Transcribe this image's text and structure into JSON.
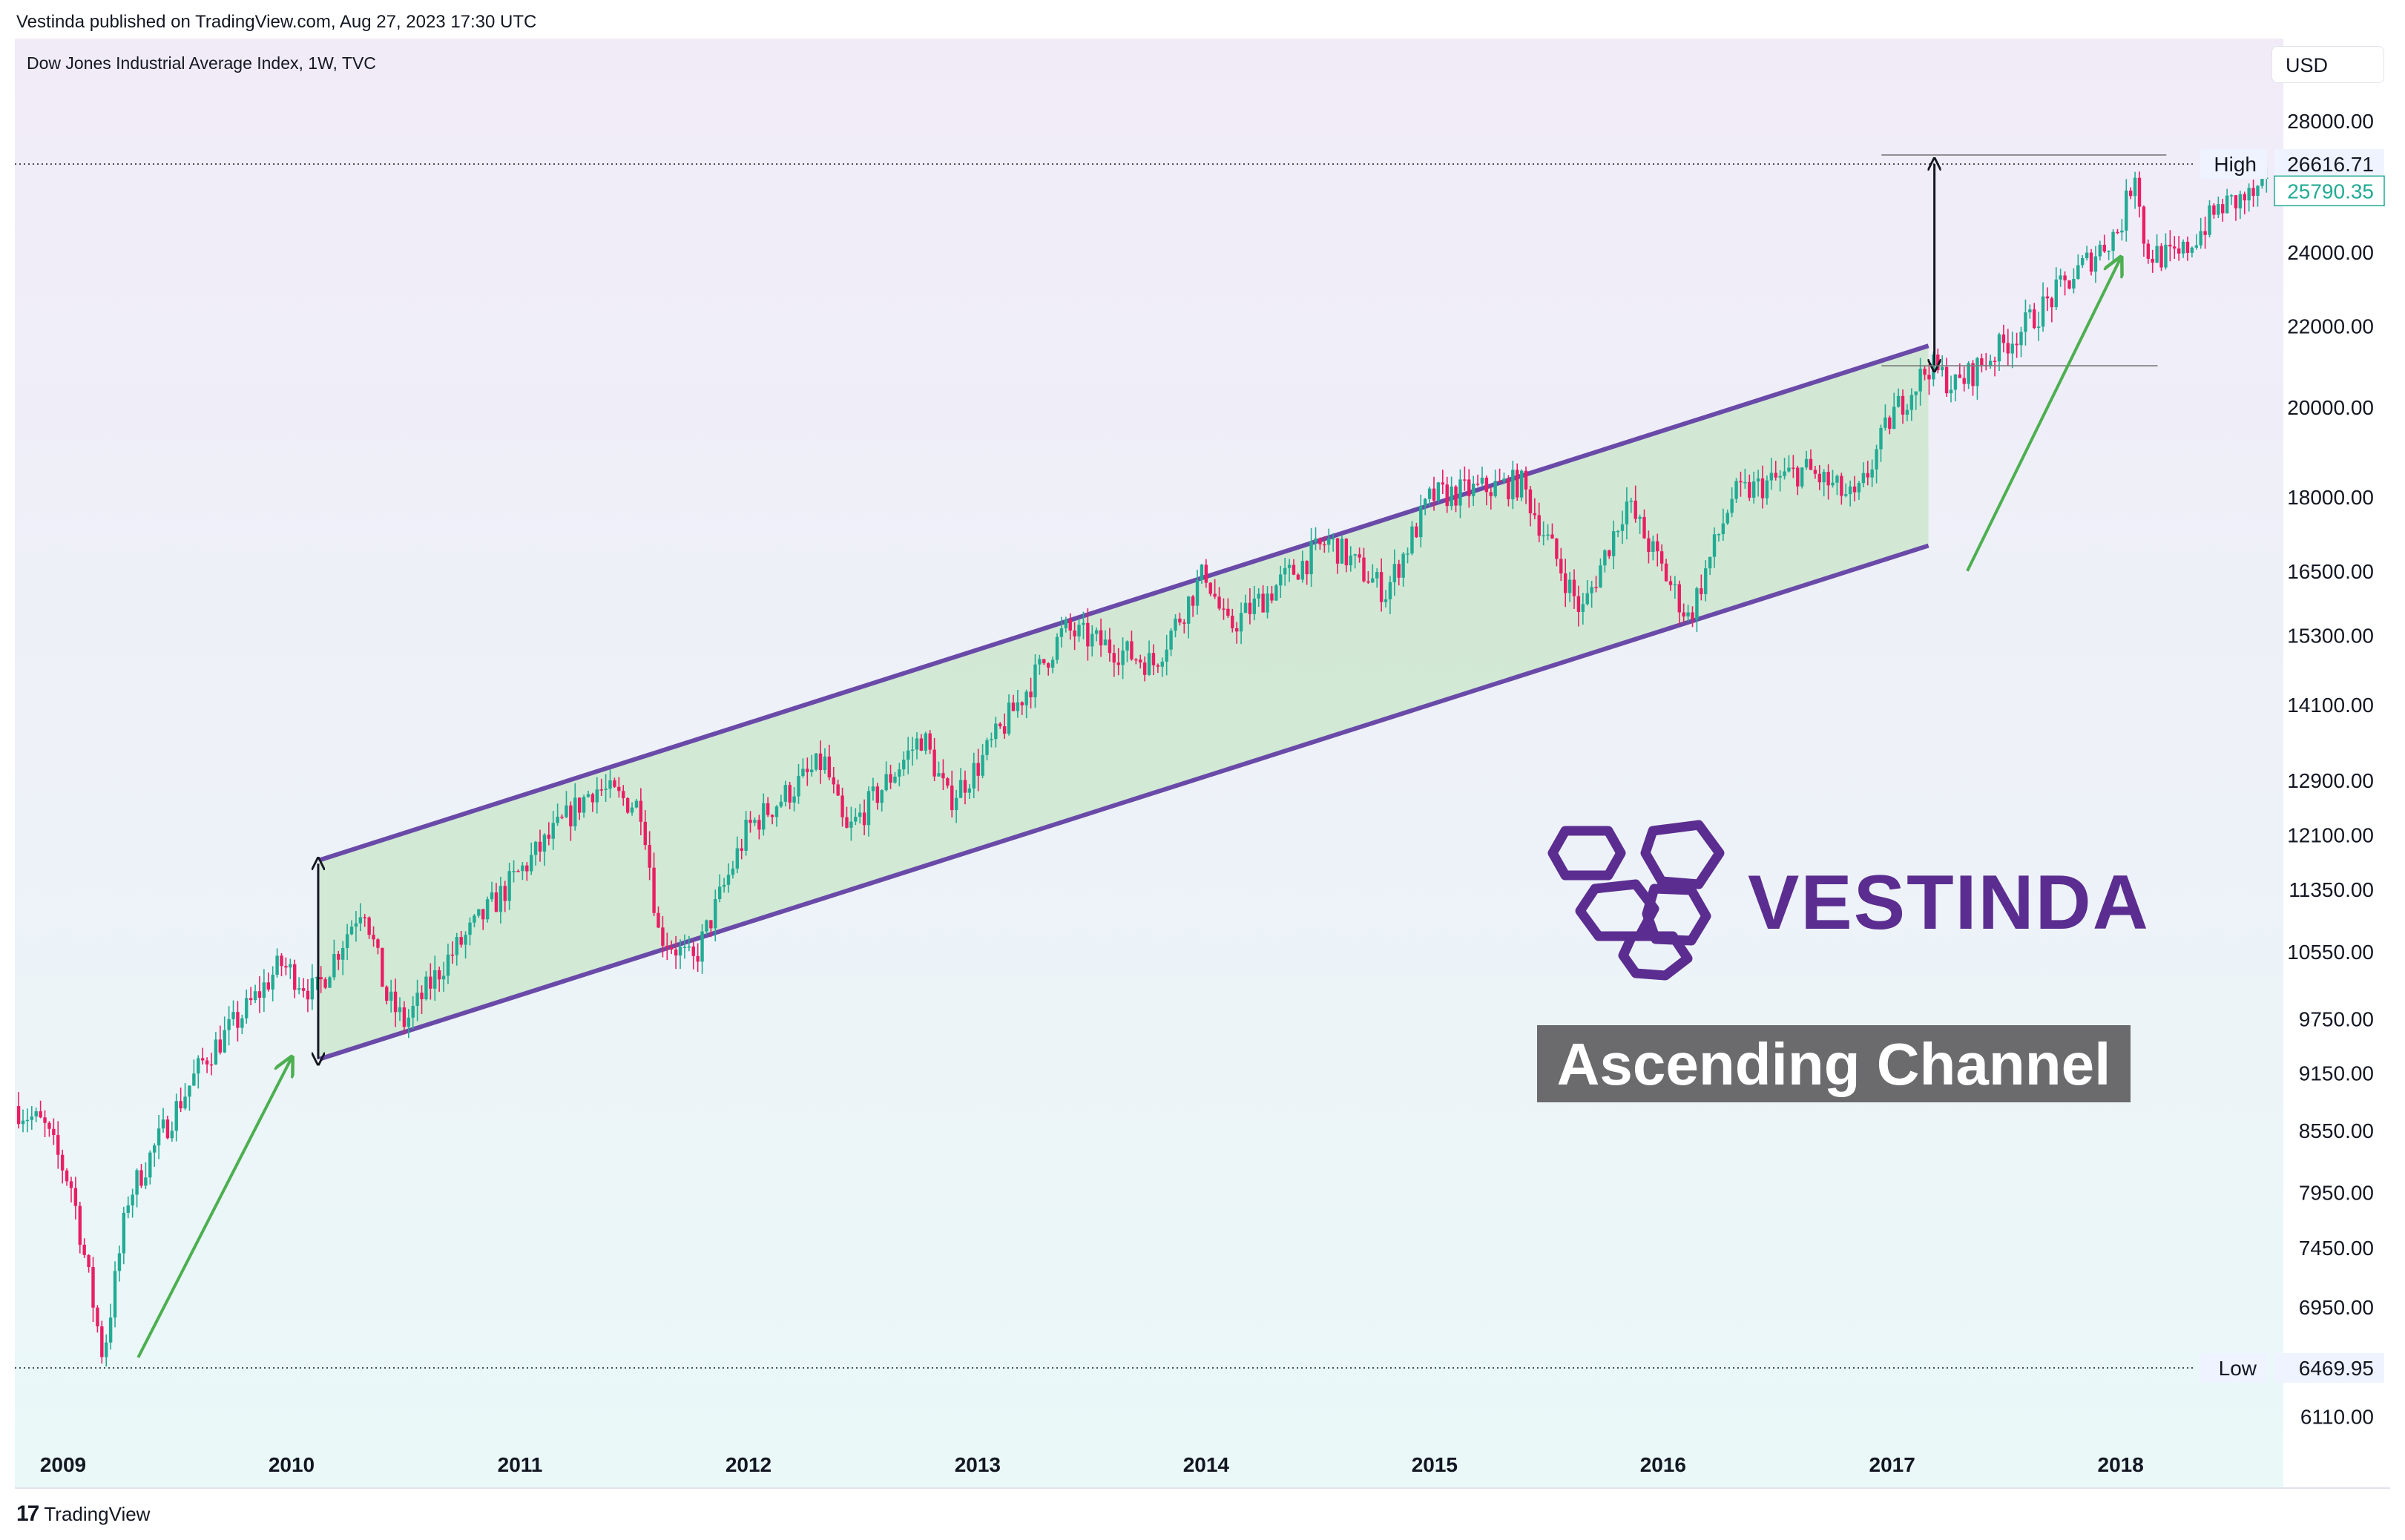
{
  "header": {
    "published": "Vestinda published on TradingView.com, Aug 27, 2023 17:30 UTC",
    "symbol": "Dow Jones Industrial Average Index, 1W, TVC",
    "currency": "USD"
  },
  "footer": {
    "logo_mark": "17",
    "logo_text": "TradingView"
  },
  "branding": {
    "name": "VESTINDA",
    "caption": "Ascending Channel"
  },
  "colors": {
    "up": "#26a69a",
    "up_bright": "#22ab94",
    "down": "#e91e63",
    "channel_line": "#6a4aa8",
    "channel_fill": "#c8e6c9",
    "arrow_green": "#4caf50",
    "brand": "#5b2d90",
    "caption_bg": "#6b6b6e",
    "last_price": "#22ab94"
  },
  "chart_data": {
    "type": "candlestick",
    "title": "Dow Jones Industrial Average Index, 1W, TVC",
    "x_ticks": [
      "2009",
      "2010",
      "2011",
      "2012",
      "2013",
      "2014",
      "2015",
      "2016",
      "2017",
      "2018"
    ],
    "y_scale": "log",
    "y_ticks": [
      "28000.00",
      "24000.00",
      "22000.00",
      "20000.00",
      "18000.00",
      "16500.00",
      "15300.00",
      "14100.00",
      "12900.00",
      "12100.00",
      "11350.00",
      "10550.00",
      "9750.00",
      "9150.00",
      "8550.00",
      "7950.00",
      "7450.00",
      "6950.00",
      "6110.00"
    ],
    "high": {
      "label": "High",
      "value": "26616.71"
    },
    "low": {
      "label": "Low",
      "value": "6469.95"
    },
    "last_price": "25790.35",
    "series": [
      {
        "name": "Dow Jones Industrial Average",
        "points": [
          {
            "date": "2008-10-15",
            "close": 8800
          },
          {
            "date": "2008-12-01",
            "close": 8600
          },
          {
            "date": "2009-01-15",
            "close": 8000
          },
          {
            "date": "2009-03-06",
            "close": 6550
          },
          {
            "date": "2009-04-15",
            "close": 7900
          },
          {
            "date": "2009-06-15",
            "close": 8600
          },
          {
            "date": "2009-08-15",
            "close": 9300
          },
          {
            "date": "2009-10-15",
            "close": 9800
          },
          {
            "date": "2009-12-15",
            "close": 10400
          },
          {
            "date": "2010-02-08",
            "close": 10050
          },
          {
            "date": "2010-04-26",
            "close": 11200
          },
          {
            "date": "2010-06-01",
            "close": 10000
          },
          {
            "date": "2010-07-01",
            "close": 9700
          },
          {
            "date": "2010-09-01",
            "close": 10400
          },
          {
            "date": "2010-12-31",
            "close": 11580
          },
          {
            "date": "2011-04-29",
            "close": 12800
          },
          {
            "date": "2011-07-15",
            "close": 12500
          },
          {
            "date": "2011-08-10",
            "close": 10800
          },
          {
            "date": "2011-10-04",
            "close": 10400
          },
          {
            "date": "2011-12-31",
            "close": 12200
          },
          {
            "date": "2012-05-01",
            "close": 13200
          },
          {
            "date": "2012-06-04",
            "close": 12100
          },
          {
            "date": "2012-10-05",
            "close": 13600
          },
          {
            "date": "2012-11-15",
            "close": 12600
          },
          {
            "date": "2012-12-31",
            "close": 13100
          },
          {
            "date": "2013-05-20",
            "close": 15400
          },
          {
            "date": "2013-10-09",
            "close": 14800
          },
          {
            "date": "2013-12-31",
            "close": 16500
          },
          {
            "date": "2014-02-03",
            "close": 15400
          },
          {
            "date": "2014-07-15",
            "close": 17100
          },
          {
            "date": "2014-10-15",
            "close": 16100
          },
          {
            "date": "2014-12-26",
            "close": 18000
          },
          {
            "date": "2015-05-19",
            "close": 18300
          },
          {
            "date": "2015-08-24",
            "close": 15700
          },
          {
            "date": "2015-11-03",
            "close": 17900
          },
          {
            "date": "2016-02-11",
            "close": 15600
          },
          {
            "date": "2016-04-20",
            "close": 18000
          },
          {
            "date": "2016-08-15",
            "close": 18600
          },
          {
            "date": "2016-11-04",
            "close": 17900
          },
          {
            "date": "2016-12-31",
            "close": 19800
          },
          {
            "date": "2017-03-01",
            "close": 21000
          },
          {
            "date": "2017-04-13",
            "close": 20500
          },
          {
            "date": "2017-08-01",
            "close": 22000
          },
          {
            "date": "2017-12-31",
            "close": 24700
          },
          {
            "date": "2018-01-26",
            "close": 26616
          },
          {
            "date": "2018-02-08",
            "close": 24000
          },
          {
            "date": "2018-04-02",
            "close": 23800
          },
          {
            "date": "2018-06-08",
            "close": 25300
          },
          {
            "date": "2018-08-24",
            "close": 25790
          }
        ]
      }
    ],
    "channel": {
      "upper": [
        {
          "date": "2010-02-15",
          "value": 11750
        },
        {
          "date": "2017-02-28",
          "value": 21500
        }
      ],
      "lower": [
        {
          "date": "2010-02-15",
          "value": 9300
        },
        {
          "date": "2017-02-28",
          "value": 17000
        }
      ]
    },
    "reference_lines": [
      {
        "value": 26616.71,
        "label": "High"
      },
      {
        "value": 6469.95,
        "label": "Low"
      }
    ],
    "legend": "none",
    "grid": false
  }
}
